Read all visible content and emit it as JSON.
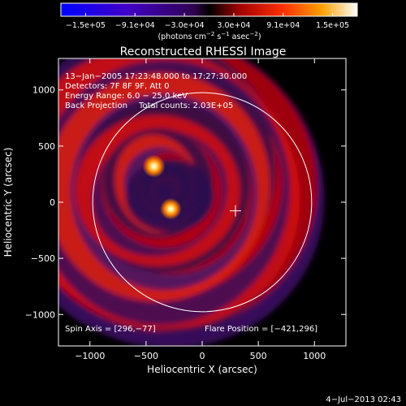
{
  "chart_data": {
    "type": "heatmap",
    "title": "Reconstructed RHESSI Image",
    "xlabel": "Heliocentric X (arcsec)",
    "ylabel": "Heliocentric Y (arcsec)",
    "xlim": [
      -1280,
      1280
    ],
    "ylim": [
      -1280,
      1280
    ],
    "x_ticks": [
      "−1000",
      "−500",
      "0",
      "500",
      "1000"
    ],
    "x_tick_values": [
      -1000,
      -500,
      0,
      500,
      1000
    ],
    "y_ticks": [
      "1000",
      "500",
      "0",
      "−500",
      "−1000"
    ],
    "y_tick_values": [
      1000,
      500,
      0,
      -500,
      -1000
    ],
    "colorbar": {
      "range": [
        -150000,
        150000
      ],
      "tick_labels": [
        "−1.5e+05",
        "−9.1e+04",
        "−3.0e+04",
        "3.0e+04",
        "9.1e+04",
        "1.5e+05"
      ],
      "unit_text": "(photons cm",
      "unit_exp1": "−2",
      "unit_mid": " s",
      "unit_exp2": "−1",
      "unit_end": " asec",
      "unit_exp3": "−2",
      "unit_close": ")"
    },
    "annotations": {
      "time": "13−Jan−2005 17:23:48.000 to 17:27:30.000",
      "detectors": "Detectors: 7F 8F 9F, Att 0",
      "energy": "Energy Range: 6.0 − 25.0 keV",
      "method": "Back Projection",
      "counts": "Total counts: 2.03E+05",
      "spin_axis": "Spin Axis = [296,−77]",
      "flare_position": "Flare Position = [−421,296]"
    },
    "sources": [
      {
        "x": -430,
        "y": 320,
        "intensity": 1.0
      },
      {
        "x": -280,
        "y": -60,
        "intensity": 0.95
      }
    ],
    "solar_limb_radius": 975,
    "crosshair": {
      "x": 296,
      "y": -77
    },
    "colors": {
      "background": "#000000",
      "colormap": [
        "#0000ff",
        "#5000b4",
        "#000000",
        "#b40000",
        "#ff5000",
        "#ffb400",
        "#ffffff"
      ]
    }
  },
  "footer": {
    "timestamp": "4−Jul−2013 02:43"
  }
}
